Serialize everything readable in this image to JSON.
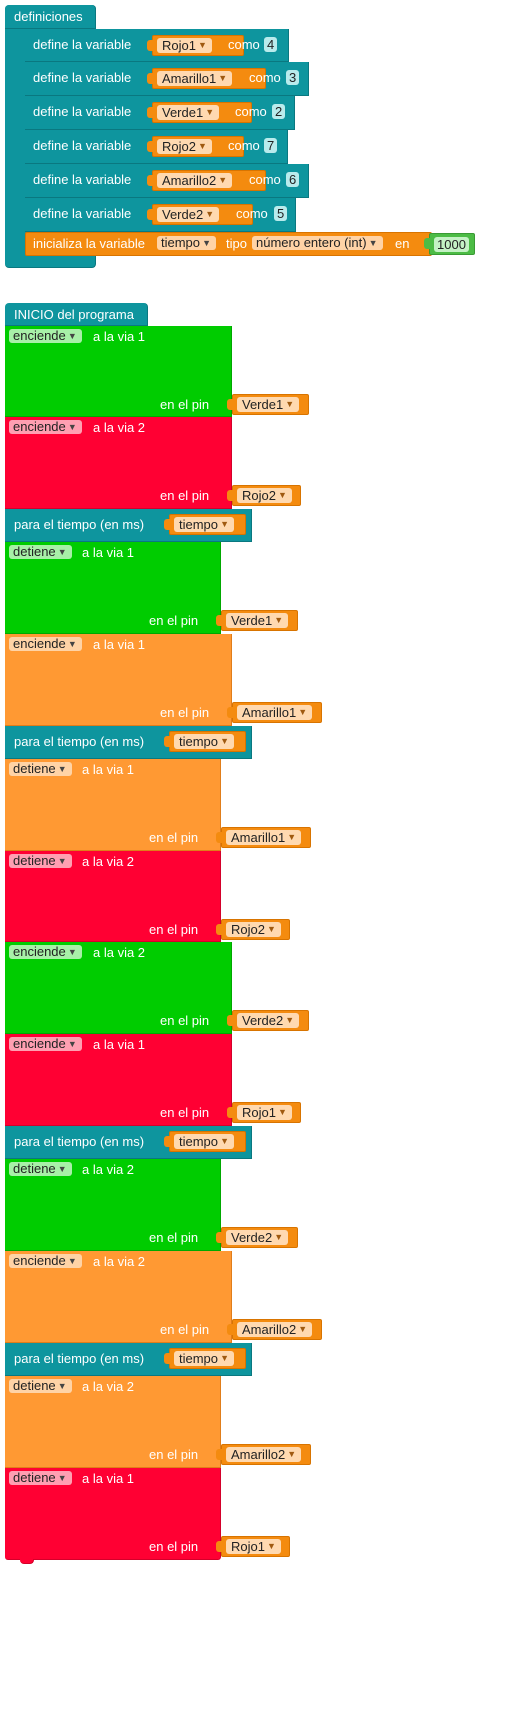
{
  "definitions": {
    "hat_label": "definiciones",
    "define_label": "define la variable",
    "como_label": "como",
    "items": [
      {
        "variable": "Rojo1",
        "value": "4"
      },
      {
        "variable": "Amarillo1",
        "value": "3"
      },
      {
        "variable": "Verde1",
        "value": "2"
      },
      {
        "variable": "Rojo2",
        "value": "7"
      },
      {
        "variable": "Amarillo2",
        "value": "6"
      },
      {
        "variable": "Verde2",
        "value": "5"
      }
    ],
    "init": {
      "label": "inicializa la variable",
      "variable": "tiempo",
      "tipo_label": "tipo",
      "type": "número entero (int)",
      "en_label": "en",
      "value": "1000"
    }
  },
  "program": {
    "hat_label": "INICIO del programa",
    "via_prefix": "a la via",
    "pin_label": "en el pin",
    "wait_label": "para el tiempo  (en ms)",
    "wait_variable": "tiempo",
    "blocks": [
      {
        "action": "enciende",
        "via": "a la via 1",
        "pin": "Verde1",
        "color": "#00cc00"
      },
      {
        "action": "enciende",
        "via": "a la via 2",
        "pin": "Rojo2",
        "color": "#ff0033"
      },
      {
        "action": "wait"
      },
      {
        "action": "detiene",
        "via": "a la via 1",
        "pin": "Verde1",
        "color": "#00cc00"
      },
      {
        "action": "enciende",
        "via": "a la via 1",
        "pin": "Amarillo1",
        "color": "#ff9933"
      },
      {
        "action": "wait"
      },
      {
        "action": "detiene",
        "via": "a la via 1",
        "pin": "Amarillo1",
        "color": "#ff9933"
      },
      {
        "action": "detiene",
        "via": "a la via 2",
        "pin": "Rojo2",
        "color": "#ff0033"
      },
      {
        "action": "enciende",
        "via": "a la via 2",
        "pin": "Verde2",
        "color": "#00cc00"
      },
      {
        "action": "enciende",
        "via": "a la via 1",
        "pin": "Rojo1",
        "color": "#ff0033"
      },
      {
        "action": "wait"
      },
      {
        "action": "detiene",
        "via": "a la via 2",
        "pin": "Verde2",
        "color": "#00cc00"
      },
      {
        "action": "enciende",
        "via": "a la via 2",
        "pin": "Amarillo2",
        "color": "#ff9933"
      },
      {
        "action": "wait"
      },
      {
        "action": "detiene",
        "via": "a la via 2",
        "pin": "Amarillo2",
        "color": "#ff9933"
      },
      {
        "action": "detiene",
        "via": "a la via 1",
        "pin": "Rojo1",
        "color": "#ff0033"
      }
    ]
  }
}
